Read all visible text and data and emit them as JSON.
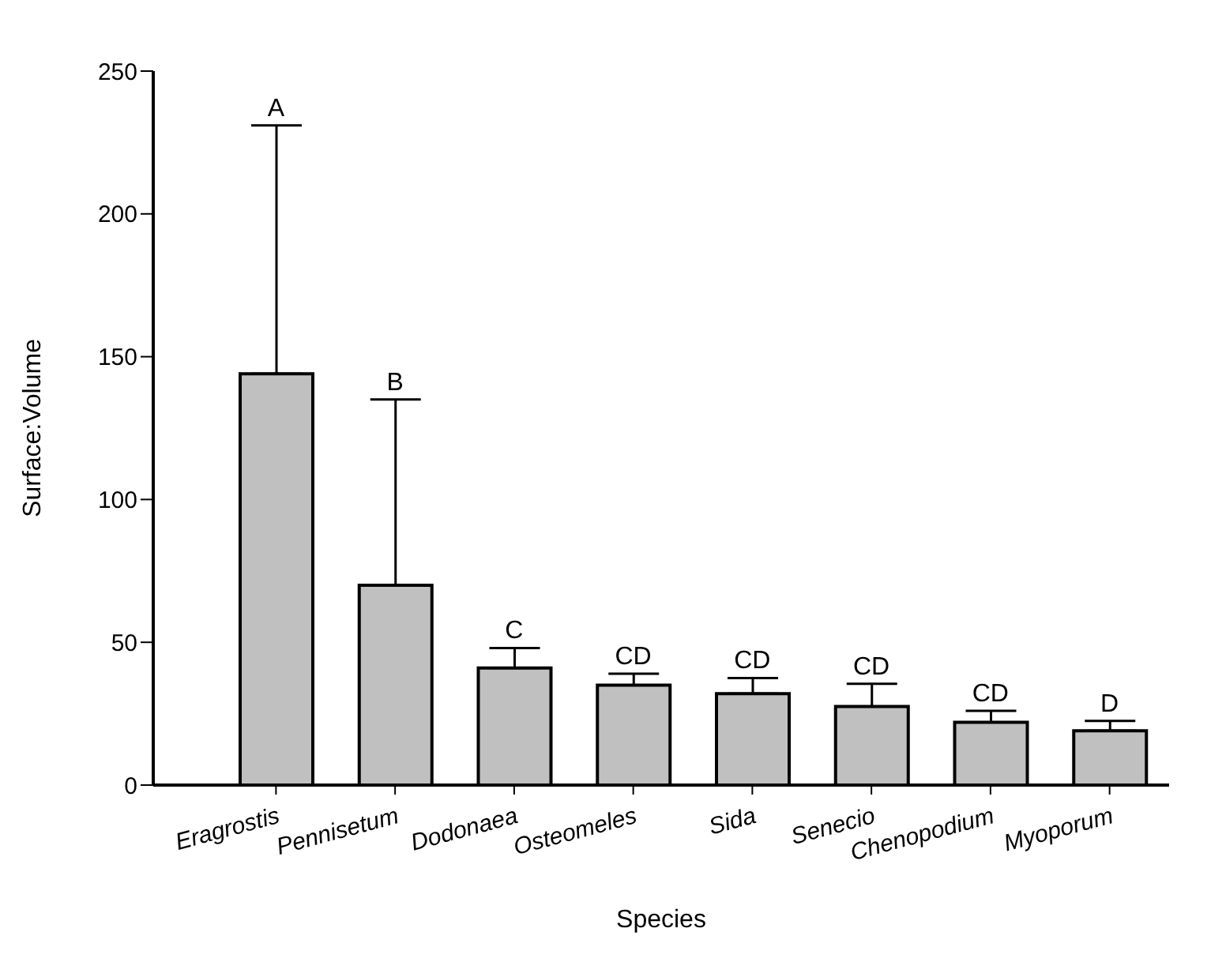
{
  "chart_data": {
    "type": "bar",
    "xlabel": "Species",
    "ylabel": "Surface:Volume",
    "categories": [
      "Eragrostis",
      "Pennisetum",
      "Dodonaea",
      "Osteomeles",
      "Sida",
      "Senecio",
      "Chenopodium",
      "Myoporum"
    ],
    "values": [
      144,
      70,
      41,
      35,
      32,
      27.5,
      22,
      19
    ],
    "errors": [
      [
        144,
        231
      ],
      [
        70,
        135
      ],
      [
        41,
        48
      ],
      [
        35,
        39
      ],
      [
        32,
        37.5
      ],
      [
        27.5,
        35.5
      ],
      [
        22,
        26
      ],
      [
        19,
        22.5
      ]
    ],
    "color": "#c0c0c0",
    "ylim": [
      0,
      250
    ],
    "yticks": [
      0,
      50,
      100,
      150,
      200,
      250
    ],
    "grid": false,
    "legend": false,
    "annotations": [
      "A",
      "B",
      "C",
      "CD",
      "CD",
      "CD",
      "CD",
      "D"
    ]
  }
}
